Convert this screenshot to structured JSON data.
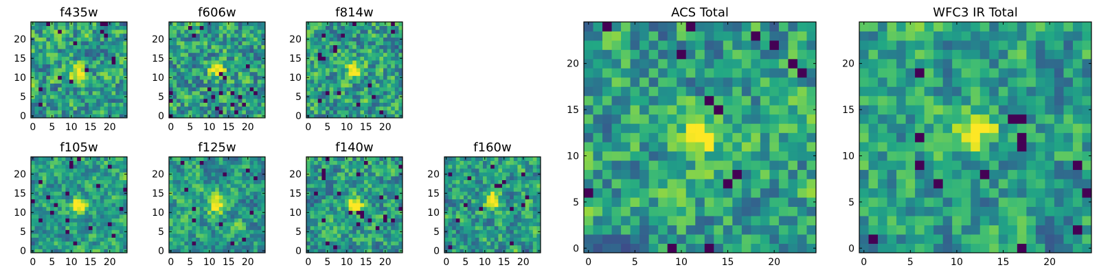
{
  "chart_data": [
    {
      "type": "heatmap",
      "title": "f435w",
      "grid_size": 25,
      "xticks": [
        "0",
        "5",
        "10",
        "15",
        "20"
      ],
      "yticks": [
        "0",
        "5",
        "10",
        "15",
        "20"
      ],
      "xlim": [
        -0.5,
        24.5
      ],
      "ylim": [
        -0.5,
        24.5
      ],
      "colormap": "viridis",
      "peak": [
        12,
        11
      ],
      "noise": 0.55,
      "seed": 11
    },
    {
      "type": "heatmap",
      "title": "f606w",
      "grid_size": 25,
      "xticks": [
        "0",
        "5",
        "10",
        "15",
        "20"
      ],
      "yticks": [
        "0",
        "5",
        "10",
        "15",
        "20"
      ],
      "xlim": [
        -0.5,
        24.5
      ],
      "ylim": [
        -0.5,
        24.5
      ],
      "colormap": "viridis",
      "peak": [
        12,
        12
      ],
      "noise": 0.6,
      "seed": 23
    },
    {
      "type": "heatmap",
      "title": "f814w",
      "grid_size": 25,
      "xticks": [
        "0",
        "5",
        "10",
        "15",
        "20"
      ],
      "yticks": [
        "0",
        "5",
        "10",
        "15",
        "20"
      ],
      "xlim": [
        -0.5,
        24.5
      ],
      "ylim": [
        -0.5,
        24.5
      ],
      "colormap": "viridis",
      "peak": [
        12,
        12
      ],
      "noise": 0.55,
      "seed": 37
    },
    {
      "type": "heatmap",
      "title": "f105w",
      "grid_size": 25,
      "xticks": [
        "0",
        "5",
        "10",
        "15",
        "20"
      ],
      "yticks": [
        "0",
        "5",
        "10",
        "15",
        "20"
      ],
      "xlim": [
        -0.5,
        24.5
      ],
      "ylim": [
        -0.5,
        24.5
      ],
      "colormap": "viridis",
      "peak": [
        12,
        12
      ],
      "noise": 0.35,
      "seed": 41
    },
    {
      "type": "heatmap",
      "title": "f125w",
      "grid_size": 25,
      "xticks": [
        "0",
        "5",
        "10",
        "15",
        "20"
      ],
      "yticks": [
        "0",
        "5",
        "10",
        "15",
        "20"
      ],
      "xlim": [
        -0.5,
        24.5
      ],
      "ylim": [
        -0.5,
        24.5
      ],
      "colormap": "viridis",
      "peak": [
        12,
        12
      ],
      "noise": 0.38,
      "seed": 53
    },
    {
      "type": "heatmap",
      "title": "f140w",
      "grid_size": 25,
      "xticks": [
        "0",
        "5",
        "10",
        "15",
        "20"
      ],
      "yticks": [
        "0",
        "5",
        "10",
        "15",
        "20"
      ],
      "xlim": [
        -0.5,
        24.5
      ],
      "ylim": [
        -0.5,
        24.5
      ],
      "colormap": "viridis",
      "peak": [
        12,
        12
      ],
      "noise": 0.45,
      "seed": 67
    },
    {
      "type": "heatmap",
      "title": "f160w",
      "grid_size": 25,
      "xticks": [
        "0",
        "5",
        "10",
        "15",
        "20"
      ],
      "yticks": [
        "0",
        "5",
        "10",
        "15",
        "20"
      ],
      "xlim": [
        -0.5,
        24.5
      ],
      "ylim": [
        -0.5,
        24.5
      ],
      "colormap": "viridis",
      "peak": [
        12,
        13
      ],
      "noise": 0.45,
      "seed": 79
    },
    {
      "type": "heatmap",
      "title": "ACS Total",
      "grid_size": 25,
      "xticks": [
        "0",
        "5",
        "10",
        "15",
        "20"
      ],
      "yticks": [
        "0",
        "5",
        "10",
        "15",
        "20"
      ],
      "xlim": [
        -0.5,
        24.5
      ],
      "ylim": [
        -0.5,
        24.5
      ],
      "colormap": "viridis",
      "peak": [
        12,
        12
      ],
      "noise": 0.5,
      "seed": 97
    },
    {
      "type": "heatmap",
      "title": "WFC3 IR Total",
      "grid_size": 25,
      "xticks": [
        "0",
        "5",
        "10",
        "15",
        "20"
      ],
      "yticks": [
        "0",
        "5",
        "10",
        "15",
        "20"
      ],
      "xlim": [
        -0.5,
        24.5
      ],
      "ylim": [
        -0.5,
        24.5
      ],
      "colormap": "viridis",
      "peak": [
        12,
        13
      ],
      "noise": 0.42,
      "seed": 131
    }
  ]
}
